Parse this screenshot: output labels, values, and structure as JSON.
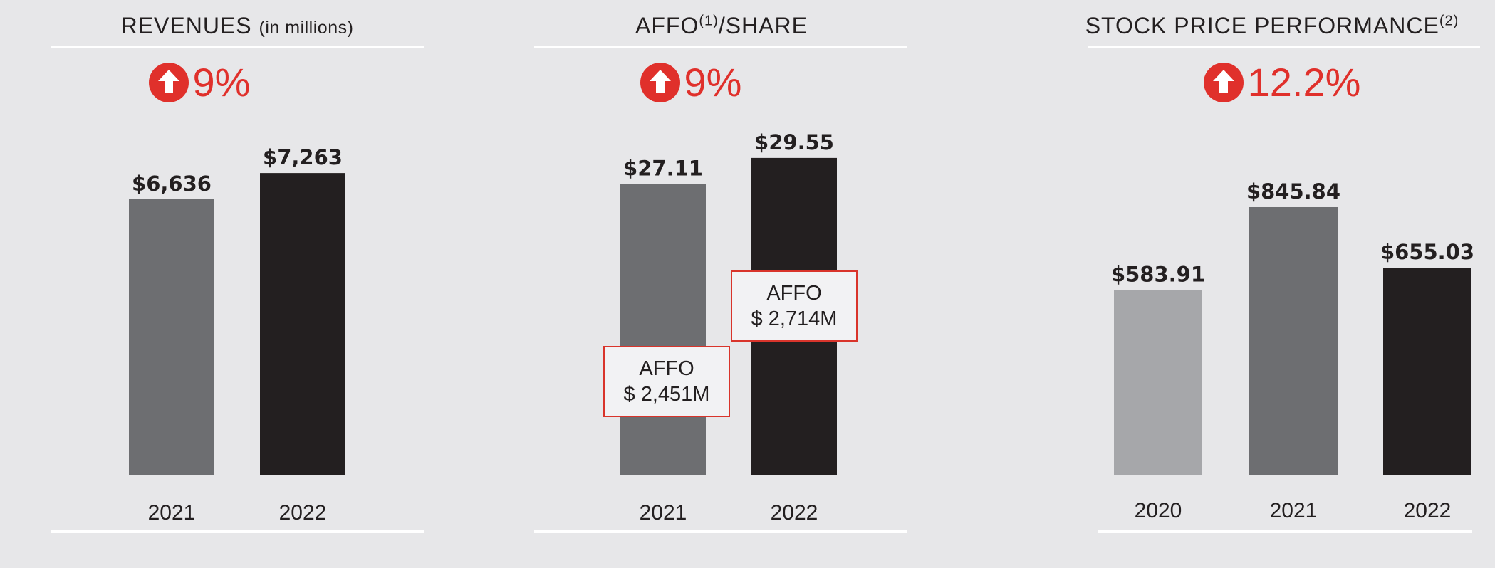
{
  "colors": {
    "accent": "#e0302b",
    "bar_light": "#a6a7aa",
    "bar_mid": "#6d6e71",
    "bar_dark": "#231f20"
  },
  "chart_data": [
    {
      "type": "bar",
      "title": "REVENUES",
      "title_note": "(in millions)",
      "growth_icon": "arrow-up-circle-icon",
      "growth": "9%",
      "categories": [
        "2021",
        "2022"
      ],
      "values": [
        6636,
        7263
      ],
      "value_labels": [
        "$6,636",
        "$7,263"
      ],
      "bar_colors": [
        "#6d6e71",
        "#231f20"
      ],
      "ylim": [
        0,
        8000
      ]
    },
    {
      "type": "bar",
      "title": "AFFO",
      "title_sup": "(1)",
      "title_suffix": "/SHARE",
      "growth_icon": "arrow-up-circle-icon",
      "growth": "9%",
      "categories": [
        "2021",
        "2022"
      ],
      "values": [
        27.11,
        29.55
      ],
      "value_labels": [
        "$27.11",
        "$29.55"
      ],
      "bar_colors": [
        "#6d6e71",
        "#231f20"
      ],
      "annotations": [
        {
          "label": "AFFO",
          "value": "$ 2,451M"
        },
        {
          "label": "AFFO",
          "value": "$ 2,714M"
        }
      ],
      "ylim": [
        0,
        31
      ]
    },
    {
      "type": "bar",
      "title": "STOCK PRICE PERFORMANCE",
      "title_sup": "(2)",
      "growth_icon": "arrow-up-circle-icon",
      "growth": "12.2%",
      "categories": [
        "2020",
        "2021",
        "2022"
      ],
      "values": [
        583.91,
        845.84,
        655.03
      ],
      "value_labels": [
        "$583.91",
        "$845.84",
        "$655.03"
      ],
      "bar_colors": [
        "#a6a7aa",
        "#6d6e71",
        "#231f20"
      ],
      "ylim": [
        0,
        1050
      ]
    }
  ]
}
